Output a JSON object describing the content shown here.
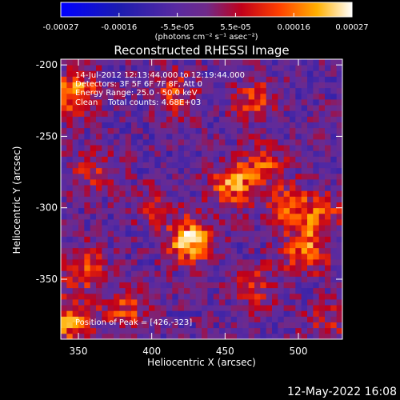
{
  "colorbar": {
    "ticks": [
      "-0.00027",
      "-0.00016",
      "-5.5e-05",
      "5.5e-05",
      "0.00016",
      "0.00027"
    ],
    "unit_label": "(photons cm⁻² s⁻¹ asec⁻²)"
  },
  "chart_data": {
    "type": "heatmap",
    "title": "Reconstructed RHESSI Image",
    "xlabel": "Heliocentric X (arcsec)",
    "ylabel": "Heliocentric Y (arcsec)",
    "xlim": [
      338,
      530
    ],
    "ylim": [
      -392,
      -196
    ],
    "x_ticks": [
      "350",
      "400",
      "450",
      "500"
    ],
    "y_ticks": [
      "-200",
      "-250",
      "-300",
      "-350"
    ],
    "x_tick_values": [
      350,
      400,
      450,
      500
    ],
    "y_tick_values": [
      -200,
      -250,
      -300,
      -350
    ],
    "value_range": [
      -0.00027,
      0.00027
    ],
    "annotations": [
      "14-Jul-2012 12:13:44.000 to 12:19:44.000",
      "Detectors: 3F 5F 6F 7F 8F, Att 0",
      "Energy Range: 25.0 - 50.0 keV",
      "Clean    Total counts: 4.68E+03"
    ],
    "peak_label": "Position of Peak = [426,-323]",
    "peak": [
      426,
      -323
    ],
    "hotspots": [
      {
        "x": 426,
        "y": -323,
        "v": 0.00027
      },
      {
        "x": 455,
        "y": -283,
        "v": 0.00021
      },
      {
        "x": 348,
        "y": -220,
        "v": 0.00022
      },
      {
        "x": 343,
        "y": -380,
        "v": 0.0002
      },
      {
        "x": 352,
        "y": -342,
        "v": 0.00016
      },
      {
        "x": 382,
        "y": -370,
        "v": 0.00015
      },
      {
        "x": 505,
        "y": -330,
        "v": 0.00019
      },
      {
        "x": 515,
        "y": -305,
        "v": 0.00015
      },
      {
        "x": 492,
        "y": -300,
        "v": 0.00015
      },
      {
        "x": 478,
        "y": -270,
        "v": 0.00014
      },
      {
        "x": 470,
        "y": -225,
        "v": 0.00014
      },
      {
        "x": 415,
        "y": -220,
        "v": 0.00014
      },
      {
        "x": 360,
        "y": -275,
        "v": 0.0001
      },
      {
        "x": 470,
        "y": -355,
        "v": 0.00012
      },
      {
        "x": 520,
        "y": -380,
        "v": 0.0001
      },
      {
        "x": 400,
        "y": -300,
        "v": 8e-05
      }
    ]
  },
  "timestamp": "12-May-2022 16:08"
}
